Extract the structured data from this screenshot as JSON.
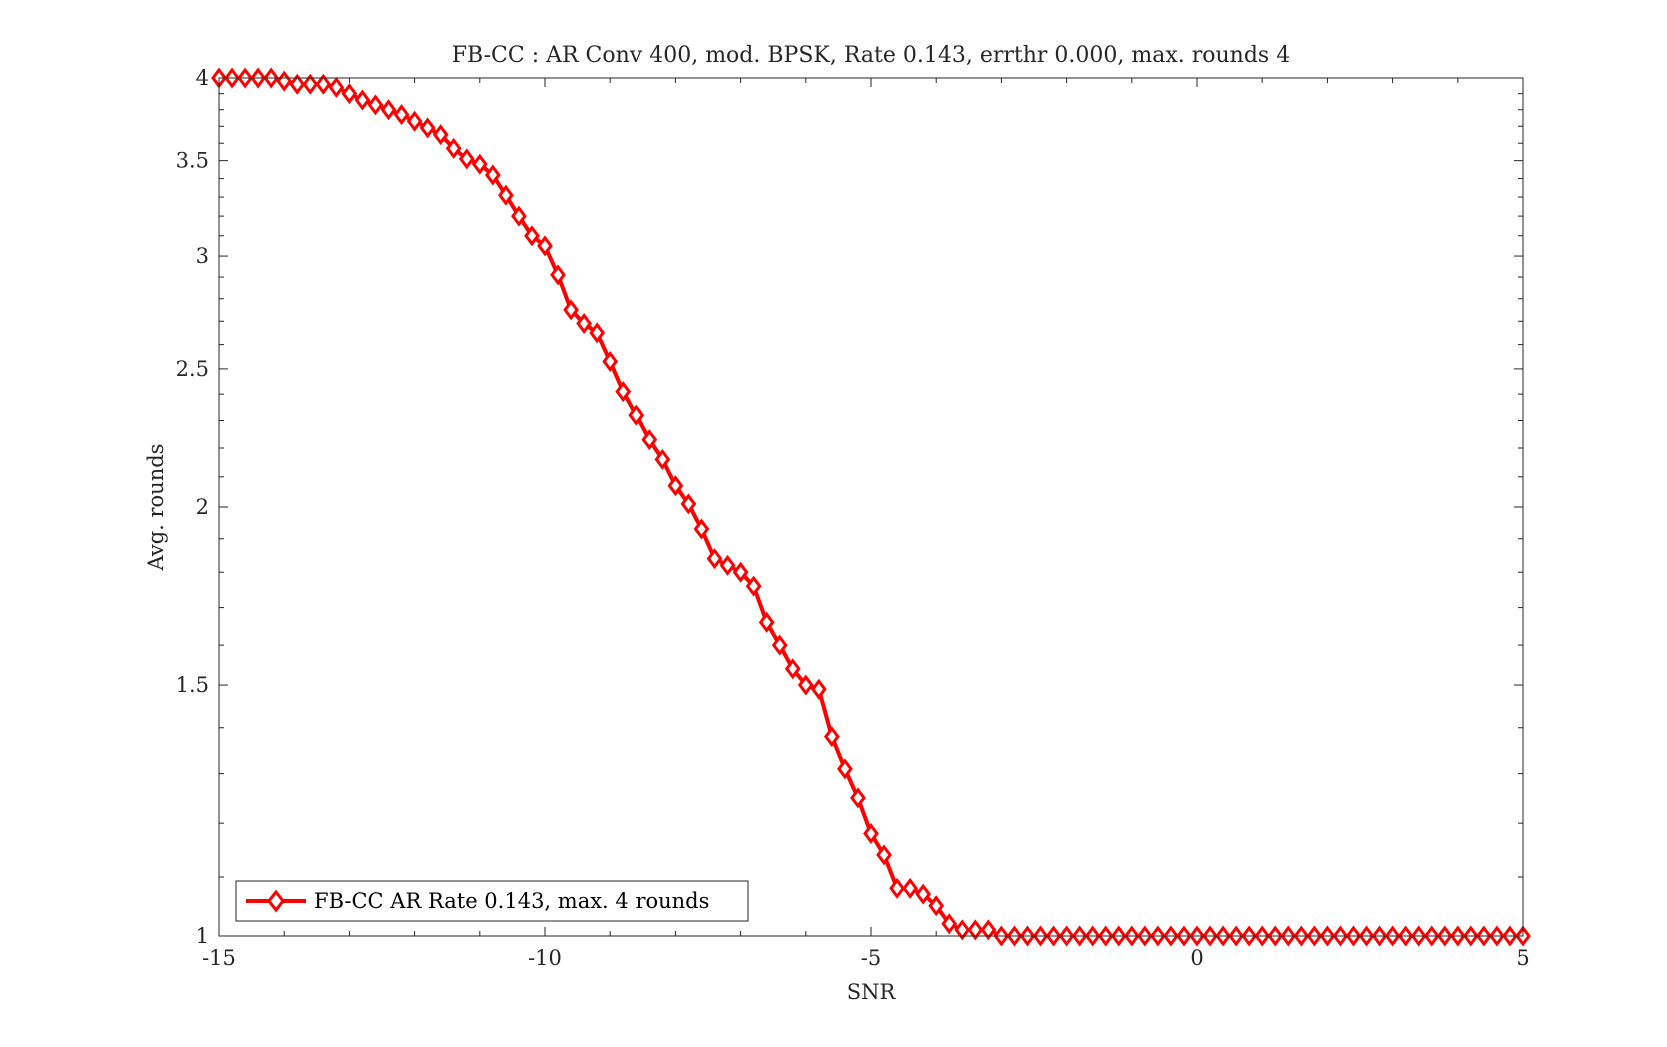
{
  "chart_data": {
    "type": "line",
    "title": "FB-CC : AR Conv 400, mod. BPSK, Rate 0.143, errthr 0.000, max. rounds 4",
    "xlabel": "SNR",
    "ylabel": "Avg. rounds",
    "xlim": [
      -15,
      5
    ],
    "ylim": [
      1,
      4
    ],
    "yscale": "log",
    "grid": false,
    "legend_position": "bottom-left",
    "xticks": [
      -15,
      -10,
      -5,
      0,
      5
    ],
    "xtick_labels": [
      "-15",
      "-10",
      "-5",
      "0",
      "5"
    ],
    "yticks": [
      1,
      1.5,
      2,
      2.5,
      3,
      3.5,
      4
    ],
    "ytick_labels": [
      "1",
      "1.5",
      "2",
      "2.5",
      "3",
      "3.5",
      "4"
    ],
    "series": [
      {
        "name": "FB-CC AR Rate 0.143, max. 4 rounds",
        "color": "#ff0000",
        "marker": "diamond",
        "x": [
          -15,
          -14.8,
          -14.6,
          -14.4,
          -14.2,
          -14,
          -13.8,
          -13.6,
          -13.4,
          -13.2,
          -13,
          -12.8,
          -12.6,
          -12.4,
          -12.2,
          -12,
          -11.8,
          -11.6,
          -11.4,
          -11.2,
          -11,
          -10.8,
          -10.6,
          -10.4,
          -10.2,
          -10,
          -9.8,
          -9.6,
          -9.4,
          -9.2,
          -9,
          -8.8,
          -8.6,
          -8.4,
          -8.2,
          -8,
          -7.8,
          -7.6,
          -7.4,
          -7.2,
          -7,
          -6.8,
          -6.6,
          -6.4,
          -6.2,
          -6,
          -5.8,
          -5.6,
          -5.4,
          -5.2,
          -5,
          -4.8,
          -4.6,
          -4.4,
          -4.2,
          -4,
          -3.8,
          -3.6,
          -3.4,
          -3.2,
          -3,
          -2.8,
          -2.6,
          -2.4,
          -2.2,
          -2,
          -1.8,
          -1.6,
          -1.4,
          -1.2,
          -1,
          -0.8,
          -0.6,
          -0.4,
          -0.2,
          0,
          0.2,
          0.4,
          0.6,
          0.8,
          1,
          1.2,
          1.4,
          1.6,
          1.8,
          2,
          2.2,
          2.4,
          2.6,
          2.8,
          3,
          3.2,
          3.4,
          3.6,
          3.8,
          4,
          4.2,
          4.4,
          4.6,
          4.8,
          5
        ],
        "y": [
          4.0,
          4.0,
          4.0,
          4.0,
          4.0,
          3.98,
          3.96,
          3.96,
          3.96,
          3.94,
          3.9,
          3.86,
          3.83,
          3.8,
          3.77,
          3.73,
          3.69,
          3.65,
          3.57,
          3.51,
          3.48,
          3.42,
          3.31,
          3.2,
          3.1,
          3.05,
          2.91,
          2.75,
          2.69,
          2.65,
          2.53,
          2.41,
          2.32,
          2.23,
          2.16,
          2.07,
          2.01,
          1.93,
          1.84,
          1.82,
          1.8,
          1.76,
          1.66,
          1.6,
          1.54,
          1.5,
          1.49,
          1.38,
          1.31,
          1.25,
          1.18,
          1.14,
          1.08,
          1.08,
          1.07,
          1.05,
          1.02,
          1.01,
          1.01,
          1.01,
          1.0,
          1.0,
          1.0,
          1.0,
          1.0,
          1.0,
          1.0,
          1.0,
          1.0,
          1.0,
          1.0,
          1.0,
          1.0,
          1.0,
          1.0,
          1.0,
          1.0,
          1.0,
          1.0,
          1.0,
          1.0,
          1.0,
          1.0,
          1.0,
          1.0,
          1.0,
          1.0,
          1.0,
          1.0,
          1.0,
          1.0,
          1.0,
          1.0,
          1.0,
          1.0,
          1.0,
          1.0,
          1.0,
          1.0,
          1.0,
          1.0
        ]
      }
    ]
  }
}
